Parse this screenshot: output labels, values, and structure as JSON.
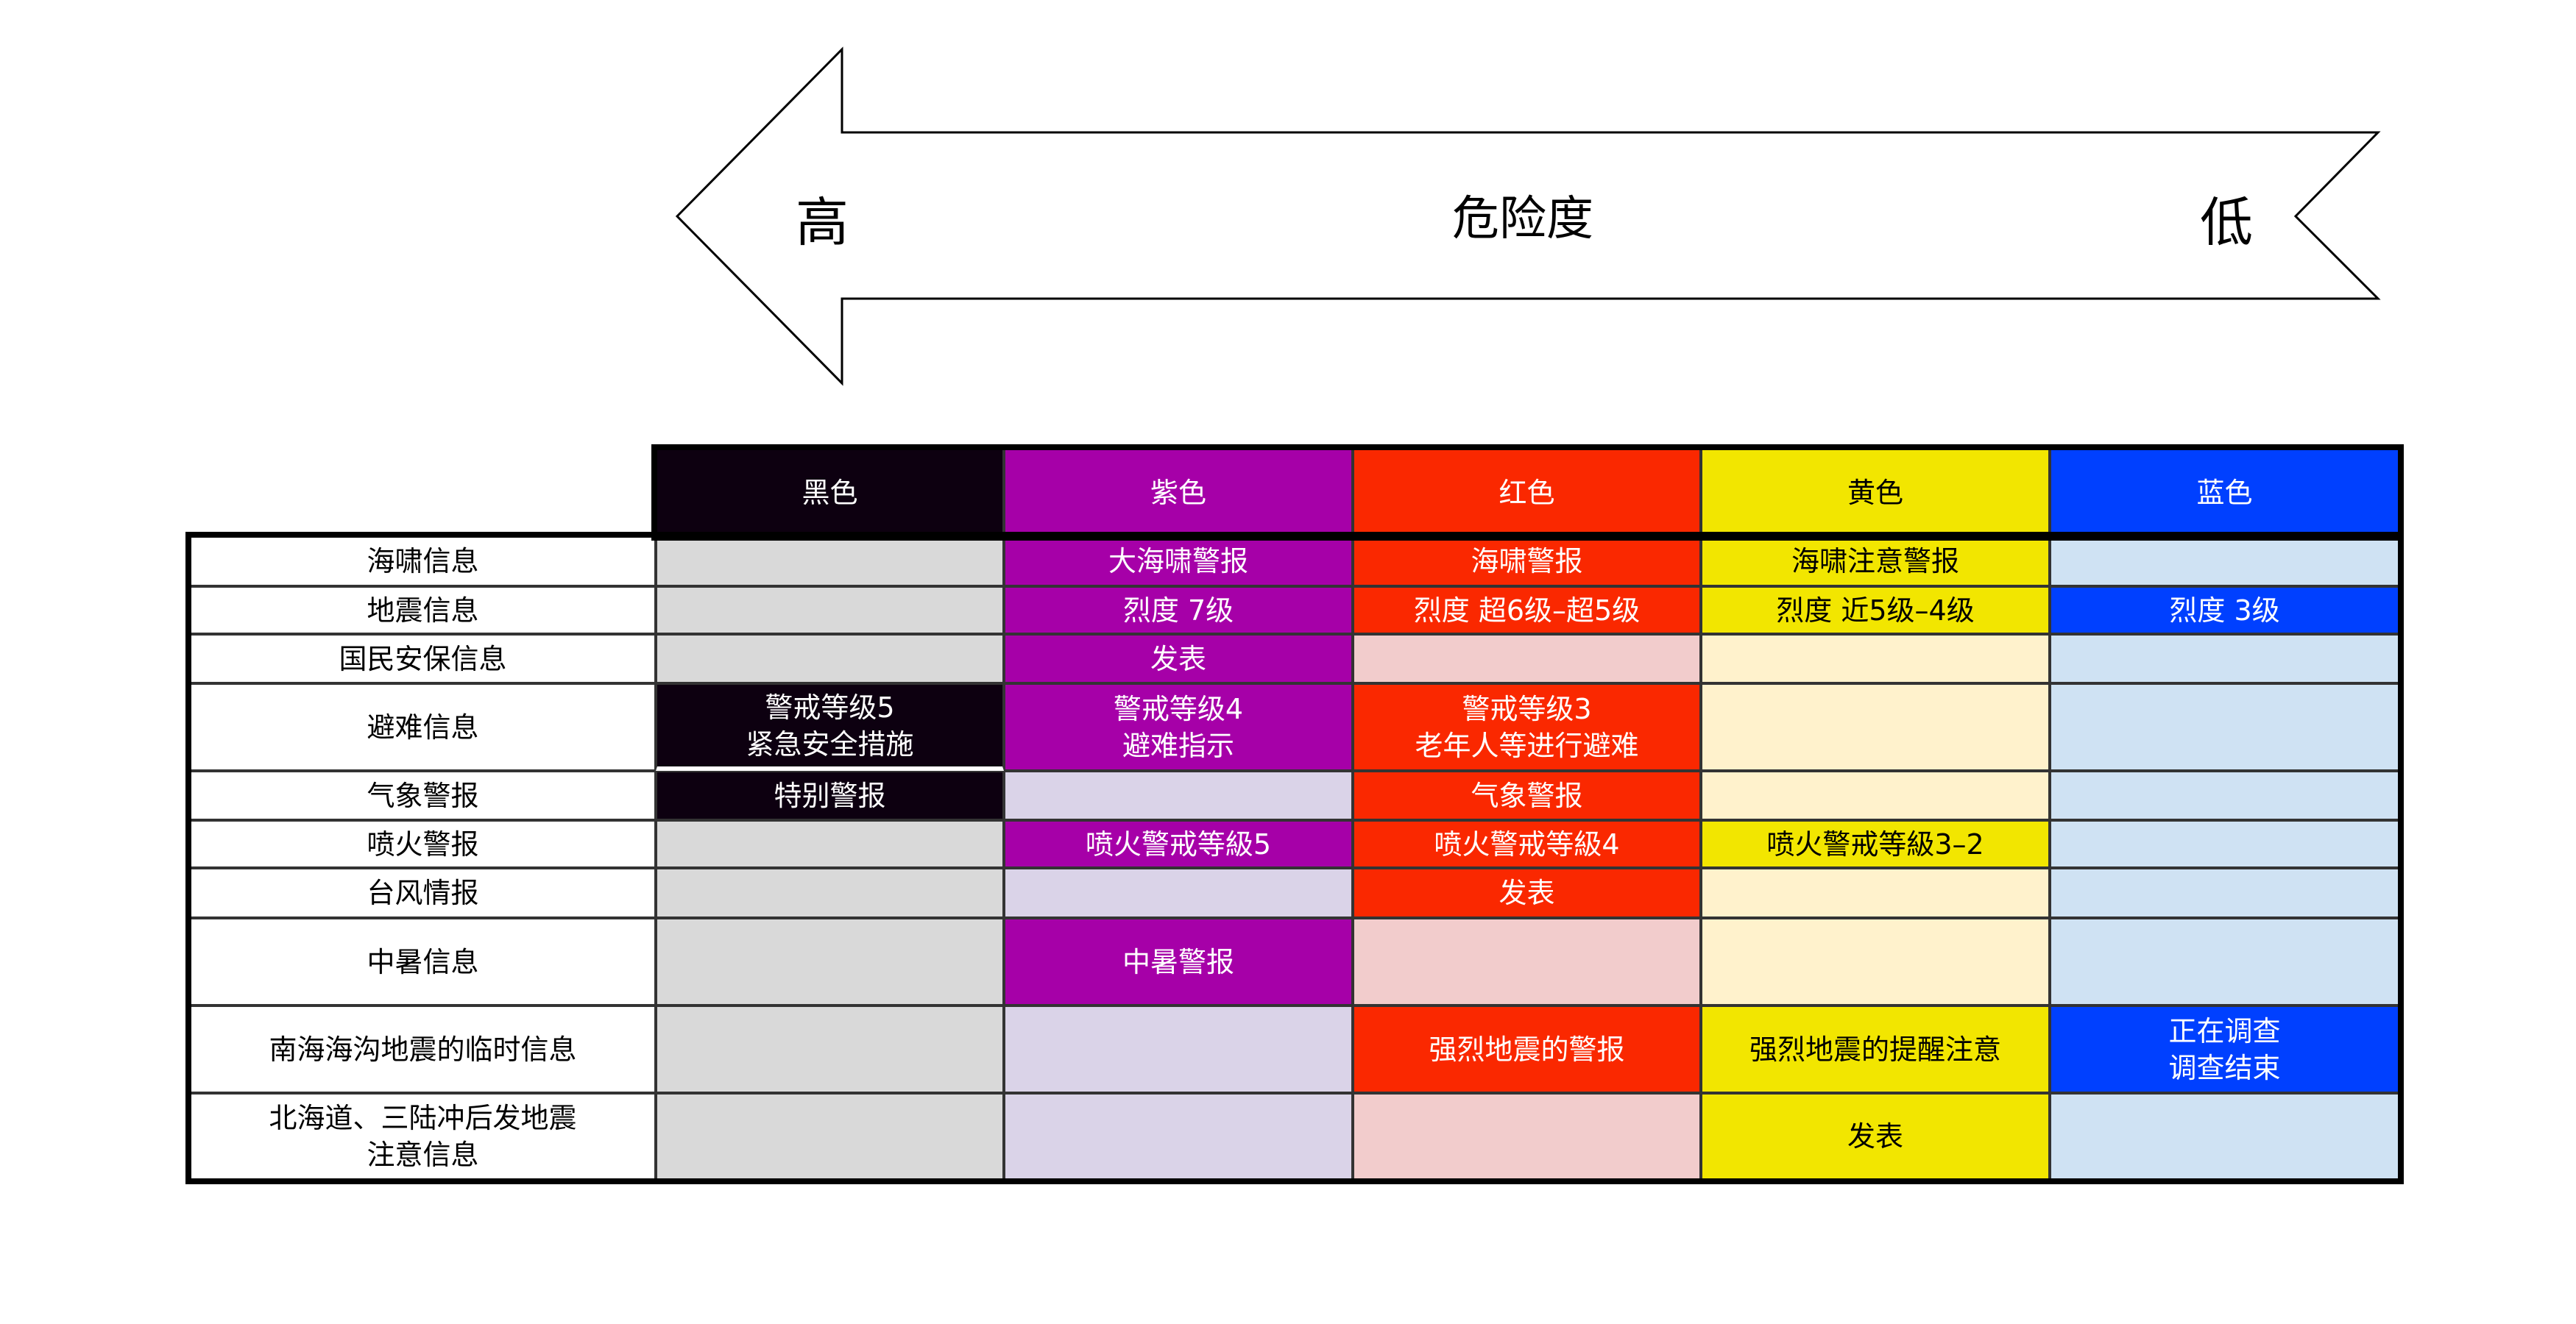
{
  "arrow": {
    "high": "高",
    "title": "危险度",
    "low": "低"
  },
  "columns": [
    {
      "label": "黑色",
      "color": "#0d0010",
      "light": "#d9d9d9",
      "text": "#ffffff"
    },
    {
      "label": "紫色",
      "color": "#a600a8",
      "light": "#dad3e8",
      "text": "#ffffff"
    },
    {
      "label": "红色",
      "color": "#fa2800",
      "light": "#f2cccc",
      "text": "#ffffff"
    },
    {
      "label": "黄色",
      "color": "#f2e600",
      "light": "#fff2cc",
      "text": "#000000"
    },
    {
      "label": "蓝色",
      "color": "#0040ff",
      "light": "#cfe2f3",
      "text": "#ffffff"
    }
  ],
  "rows": [
    {
      "label": "海啸信息",
      "cells": [
        {
          "text": "",
          "active": false
        },
        {
          "text": "大海啸警报",
          "active": true
        },
        {
          "text": "海啸警报",
          "active": true
        },
        {
          "text": "海啸注意警报",
          "active": true
        },
        {
          "text": "",
          "active": false
        }
      ]
    },
    {
      "label": "地震信息",
      "cells": [
        {
          "text": "",
          "active": false
        },
        {
          "text": "烈度 7级",
          "active": true
        },
        {
          "text": "烈度 超6级–超5级",
          "active": true
        },
        {
          "text": "烈度 近5级–4级",
          "active": true
        },
        {
          "text": "烈度 3级",
          "active": true
        }
      ]
    },
    {
      "label": "国民安保信息",
      "cells": [
        {
          "text": "",
          "active": false
        },
        {
          "text": "发表",
          "active": true
        },
        {
          "text": "",
          "active": false
        },
        {
          "text": "",
          "active": false
        },
        {
          "text": "",
          "active": false
        }
      ]
    },
    {
      "label": "避难信息",
      "cells": [
        {
          "text": "警戒等级5\n紧急安全措施",
          "active": true
        },
        {
          "text": "警戒等级4\n避难指示",
          "active": true
        },
        {
          "text": "警戒等级3\n老年人等进行避难",
          "active": true
        },
        {
          "text": "",
          "active": false
        },
        {
          "text": "",
          "active": false
        }
      ]
    },
    {
      "label": "气象警报",
      "cells": [
        {
          "text": "特别警报",
          "active": true
        },
        {
          "text": "",
          "active": false
        },
        {
          "text": "气象警报",
          "active": true
        },
        {
          "text": "",
          "active": false
        },
        {
          "text": "",
          "active": false
        }
      ]
    },
    {
      "label": "喷火警报",
      "cells": [
        {
          "text": "",
          "active": false
        },
        {
          "text": "喷火警戒等級5",
          "active": true
        },
        {
          "text": "喷火警戒等級4",
          "active": true
        },
        {
          "text": "喷火警戒等級3–2",
          "active": true
        },
        {
          "text": "",
          "active": false
        }
      ]
    },
    {
      "label": "台风情报",
      "cells": [
        {
          "text": "",
          "active": false
        },
        {
          "text": "",
          "active": false
        },
        {
          "text": "发表",
          "active": true
        },
        {
          "text": "",
          "active": false
        },
        {
          "text": "",
          "active": false
        }
      ]
    },
    {
      "label": "中暑信息",
      "cells": [
        {
          "text": "",
          "active": false
        },
        {
          "text": "中暑警报",
          "active": true
        },
        {
          "text": "",
          "active": false
        },
        {
          "text": "",
          "active": false
        },
        {
          "text": "",
          "active": false
        }
      ]
    },
    {
      "label": "南海海沟地震的临时信息",
      "cells": [
        {
          "text": "",
          "active": false
        },
        {
          "text": "",
          "active": false
        },
        {
          "text": "强烈地震的警报",
          "active": true
        },
        {
          "text": "强烈地震的提醒注意",
          "active": true
        },
        {
          "text": "正在调查\n调查结束",
          "active": true
        }
      ]
    },
    {
      "label": "北海道、三陆冲后发地震\n注意信息",
      "cells": [
        {
          "text": "",
          "active": false
        },
        {
          "text": "",
          "active": false
        },
        {
          "text": "",
          "active": false
        },
        {
          "text": "发表",
          "active": true
        },
        {
          "text": "",
          "active": false
        }
      ]
    }
  ]
}
